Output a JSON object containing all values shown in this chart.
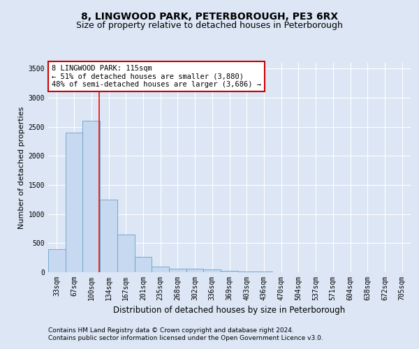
{
  "title1": "8, LINGWOOD PARK, PETERBOROUGH, PE3 6RX",
  "title2": "Size of property relative to detached houses in Peterborough",
  "xlabel": "Distribution of detached houses by size in Peterborough",
  "ylabel": "Number of detached properties",
  "bin_labels": [
    "33sqm",
    "67sqm",
    "100sqm",
    "134sqm",
    "167sqm",
    "201sqm",
    "235sqm",
    "268sqm",
    "302sqm",
    "336sqm",
    "369sqm",
    "403sqm",
    "436sqm",
    "470sqm",
    "504sqm",
    "537sqm",
    "571sqm",
    "604sqm",
    "638sqm",
    "672sqm",
    "705sqm"
  ],
  "bar_values": [
    400,
    2400,
    2600,
    1250,
    650,
    260,
    100,
    60,
    60,
    50,
    20,
    15,
    8,
    5,
    3,
    2,
    1,
    1,
    1,
    1,
    0
  ],
  "bar_color": "#c6d9f0",
  "bar_edge_color": "#6aa0c8",
  "red_line_x": 2.45,
  "annotation_text": "8 LINGWOOD PARK: 115sqm\n← 51% of detached houses are smaller (3,880)\n48% of semi-detached houses are larger (3,686) →",
  "annotation_box_color": "#ffffff",
  "annotation_box_edge_color": "#cc0000",
  "ylim": [
    0,
    3600
  ],
  "yticks": [
    0,
    500,
    1000,
    1500,
    2000,
    2500,
    3000,
    3500
  ],
  "footer1": "Contains HM Land Registry data © Crown copyright and database right 2024.",
  "footer2": "Contains public sector information licensed under the Open Government Licence v3.0.",
  "background_color": "#dce6f5",
  "plot_bg_color": "#dce6f5",
  "title1_fontsize": 10,
  "title2_fontsize": 9,
  "xlabel_fontsize": 8.5,
  "ylabel_fontsize": 8,
  "tick_fontsize": 7,
  "footer_fontsize": 6.5,
  "ann_fontsize": 7.5
}
